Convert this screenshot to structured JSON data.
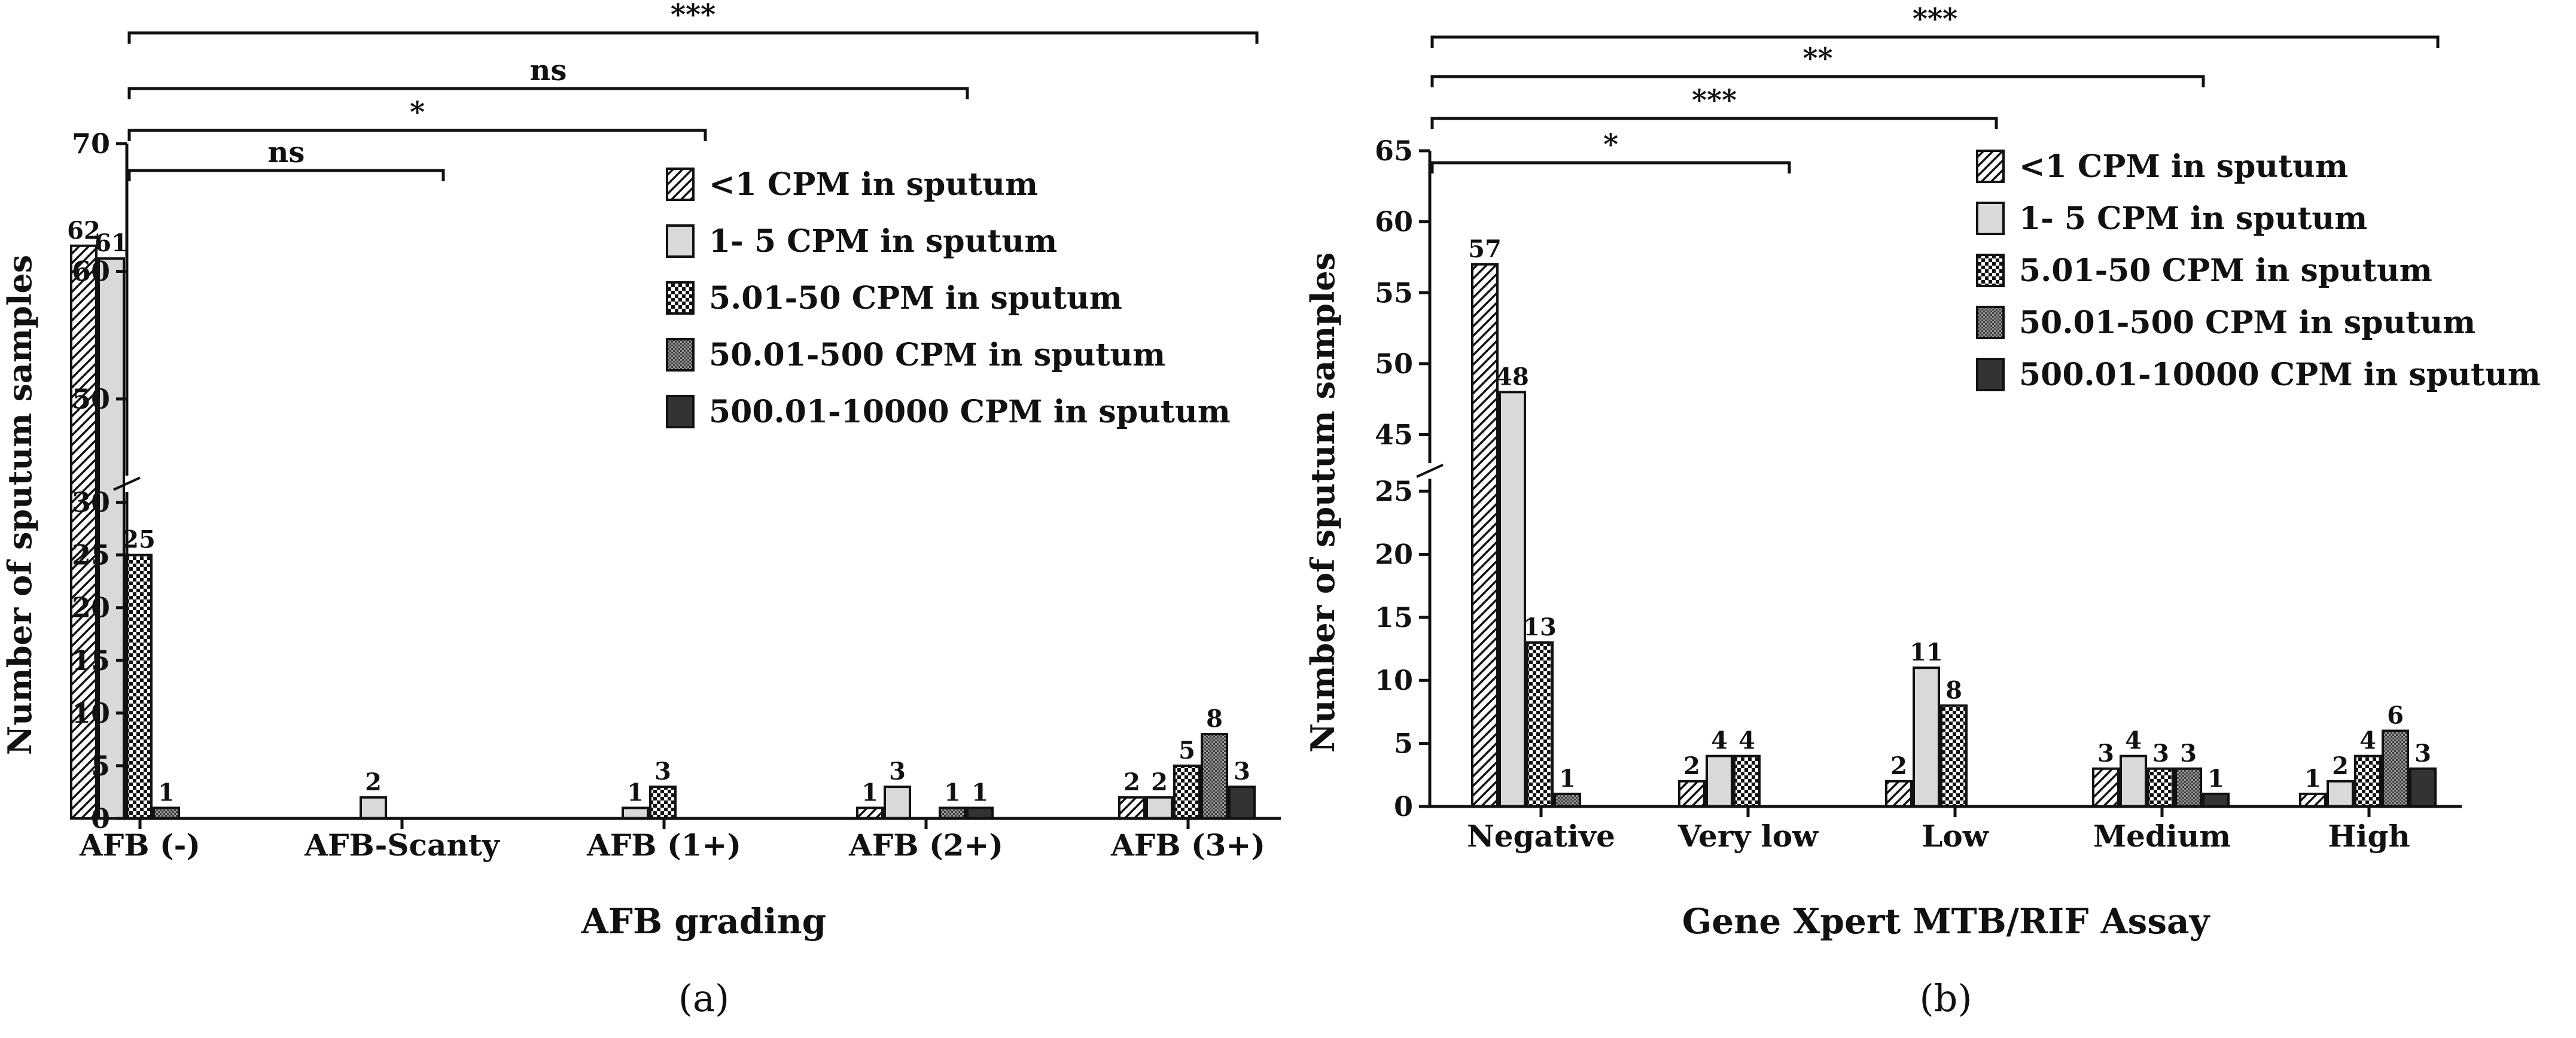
{
  "colors": {
    "ink": "#111111",
    "light": "#d9d9d9",
    "dark": "#333333",
    "white": "#ffffff"
  },
  "legend_patterns": [
    "hatch",
    "light",
    "checker",
    "dense",
    "dark"
  ],
  "chart_data": [
    {
      "type": "bar",
      "panel_label": "(a)",
      "xlabel": "AFB grading",
      "ylabel": "Number of sputum samples",
      "categories": [
        "AFB (-)",
        "AFB-Scanty",
        "AFB (1+)",
        "AFB (2+)",
        "AFB (3+)"
      ],
      "series": [
        {
          "name": "<1 CPM in sputum",
          "values": [
            62,
            0,
            0,
            1,
            2
          ]
        },
        {
          "name": "1- 5 CPM in sputum",
          "values": [
            61,
            2,
            1,
            3,
            2
          ]
        },
        {
          "name": "5.01-50 CPM in sputum",
          "values": [
            25,
            0,
            3,
            0,
            5
          ]
        },
        {
          "name": "50.01-500 CPM in sputum",
          "values": [
            1,
            0,
            0,
            1,
            8
          ]
        },
        {
          "name": "500.01-10000 CPM in sputum",
          "values": [
            0,
            0,
            0,
            1,
            3
          ]
        }
      ],
      "data_labels": [
        [
          "62",
          "",
          "",
          "1",
          "2"
        ],
        [
          "61",
          "2",
          "1",
          "3",
          "2"
        ],
        [
          "25",
          "",
          "3",
          "",
          "5"
        ],
        [
          "1",
          "",
          "",
          "1",
          "8"
        ],
        [
          "",
          "",
          "",
          "1",
          "3"
        ]
      ],
      "y_segments": [
        {
          "range": [
            0,
            31
          ],
          "ticks": [
            0,
            5,
            10,
            15,
            20,
            25,
            30
          ]
        },
        {
          "range": [
            44,
            70
          ],
          "ticks": [
            50,
            60,
            70
          ]
        }
      ],
      "significance": [
        {
          "label": "***",
          "from": "AFB (-)",
          "to": "AFB (3+)"
        },
        {
          "label": "ns",
          "from": "AFB (-)",
          "to": "AFB (2+)"
        },
        {
          "label": "*",
          "from": "AFB (-)",
          "to": "AFB (1+)"
        },
        {
          "label": "ns",
          "from": "AFB (-)",
          "to": "AFB-Scanty"
        }
      ],
      "legend_position": "top-right"
    },
    {
      "type": "bar",
      "panel_label": "(b)",
      "xlabel": "Gene Xpert MTB/RIF Assay",
      "ylabel": "Number of sputum samples",
      "categories": [
        "Negative",
        "Very low",
        "Low",
        "Medium",
        "High"
      ],
      "series": [
        {
          "name": "<1 CPM in sputum",
          "values": [
            57,
            2,
            2,
            3,
            1
          ]
        },
        {
          "name": "1- 5 CPM in sputum",
          "values": [
            48,
            4,
            11,
            4,
            2
          ]
        },
        {
          "name": "5.01-50 CPM in sputum",
          "values": [
            13,
            4,
            8,
            3,
            4
          ]
        },
        {
          "name": "50.01-500 CPM in sputum",
          "values": [
            1,
            0,
            0,
            3,
            6
          ]
        },
        {
          "name": "500.01-10000 CPM in sputum",
          "values": [
            0,
            0,
            0,
            1,
            3
          ]
        }
      ],
      "data_labels": [
        [
          "57",
          "2",
          "2",
          "3",
          "1"
        ],
        [
          "48",
          "4",
          "11",
          "4",
          "2"
        ],
        [
          "13",
          "4",
          "8",
          "3",
          "4"
        ],
        [
          "1",
          "",
          "",
          "3",
          "6"
        ],
        [
          "",
          "",
          "",
          "1",
          "3"
        ]
      ],
      "y_segments": [
        {
          "range": [
            0,
            26
          ],
          "ticks": [
            0,
            5,
            10,
            15,
            20,
            25
          ]
        },
        {
          "range": [
            43,
            65
          ],
          "ticks": [
            45,
            50,
            55,
            60,
            65
          ]
        }
      ],
      "significance": [
        {
          "label": "***",
          "from": "Negative",
          "to": "High"
        },
        {
          "label": "**",
          "from": "Negative",
          "to": "Medium"
        },
        {
          "label": "***",
          "from": "Negative",
          "to": "Low"
        },
        {
          "label": "*",
          "from": "Negative",
          "to": "Very low"
        }
      ],
      "legend_position": "top-right"
    }
  ]
}
